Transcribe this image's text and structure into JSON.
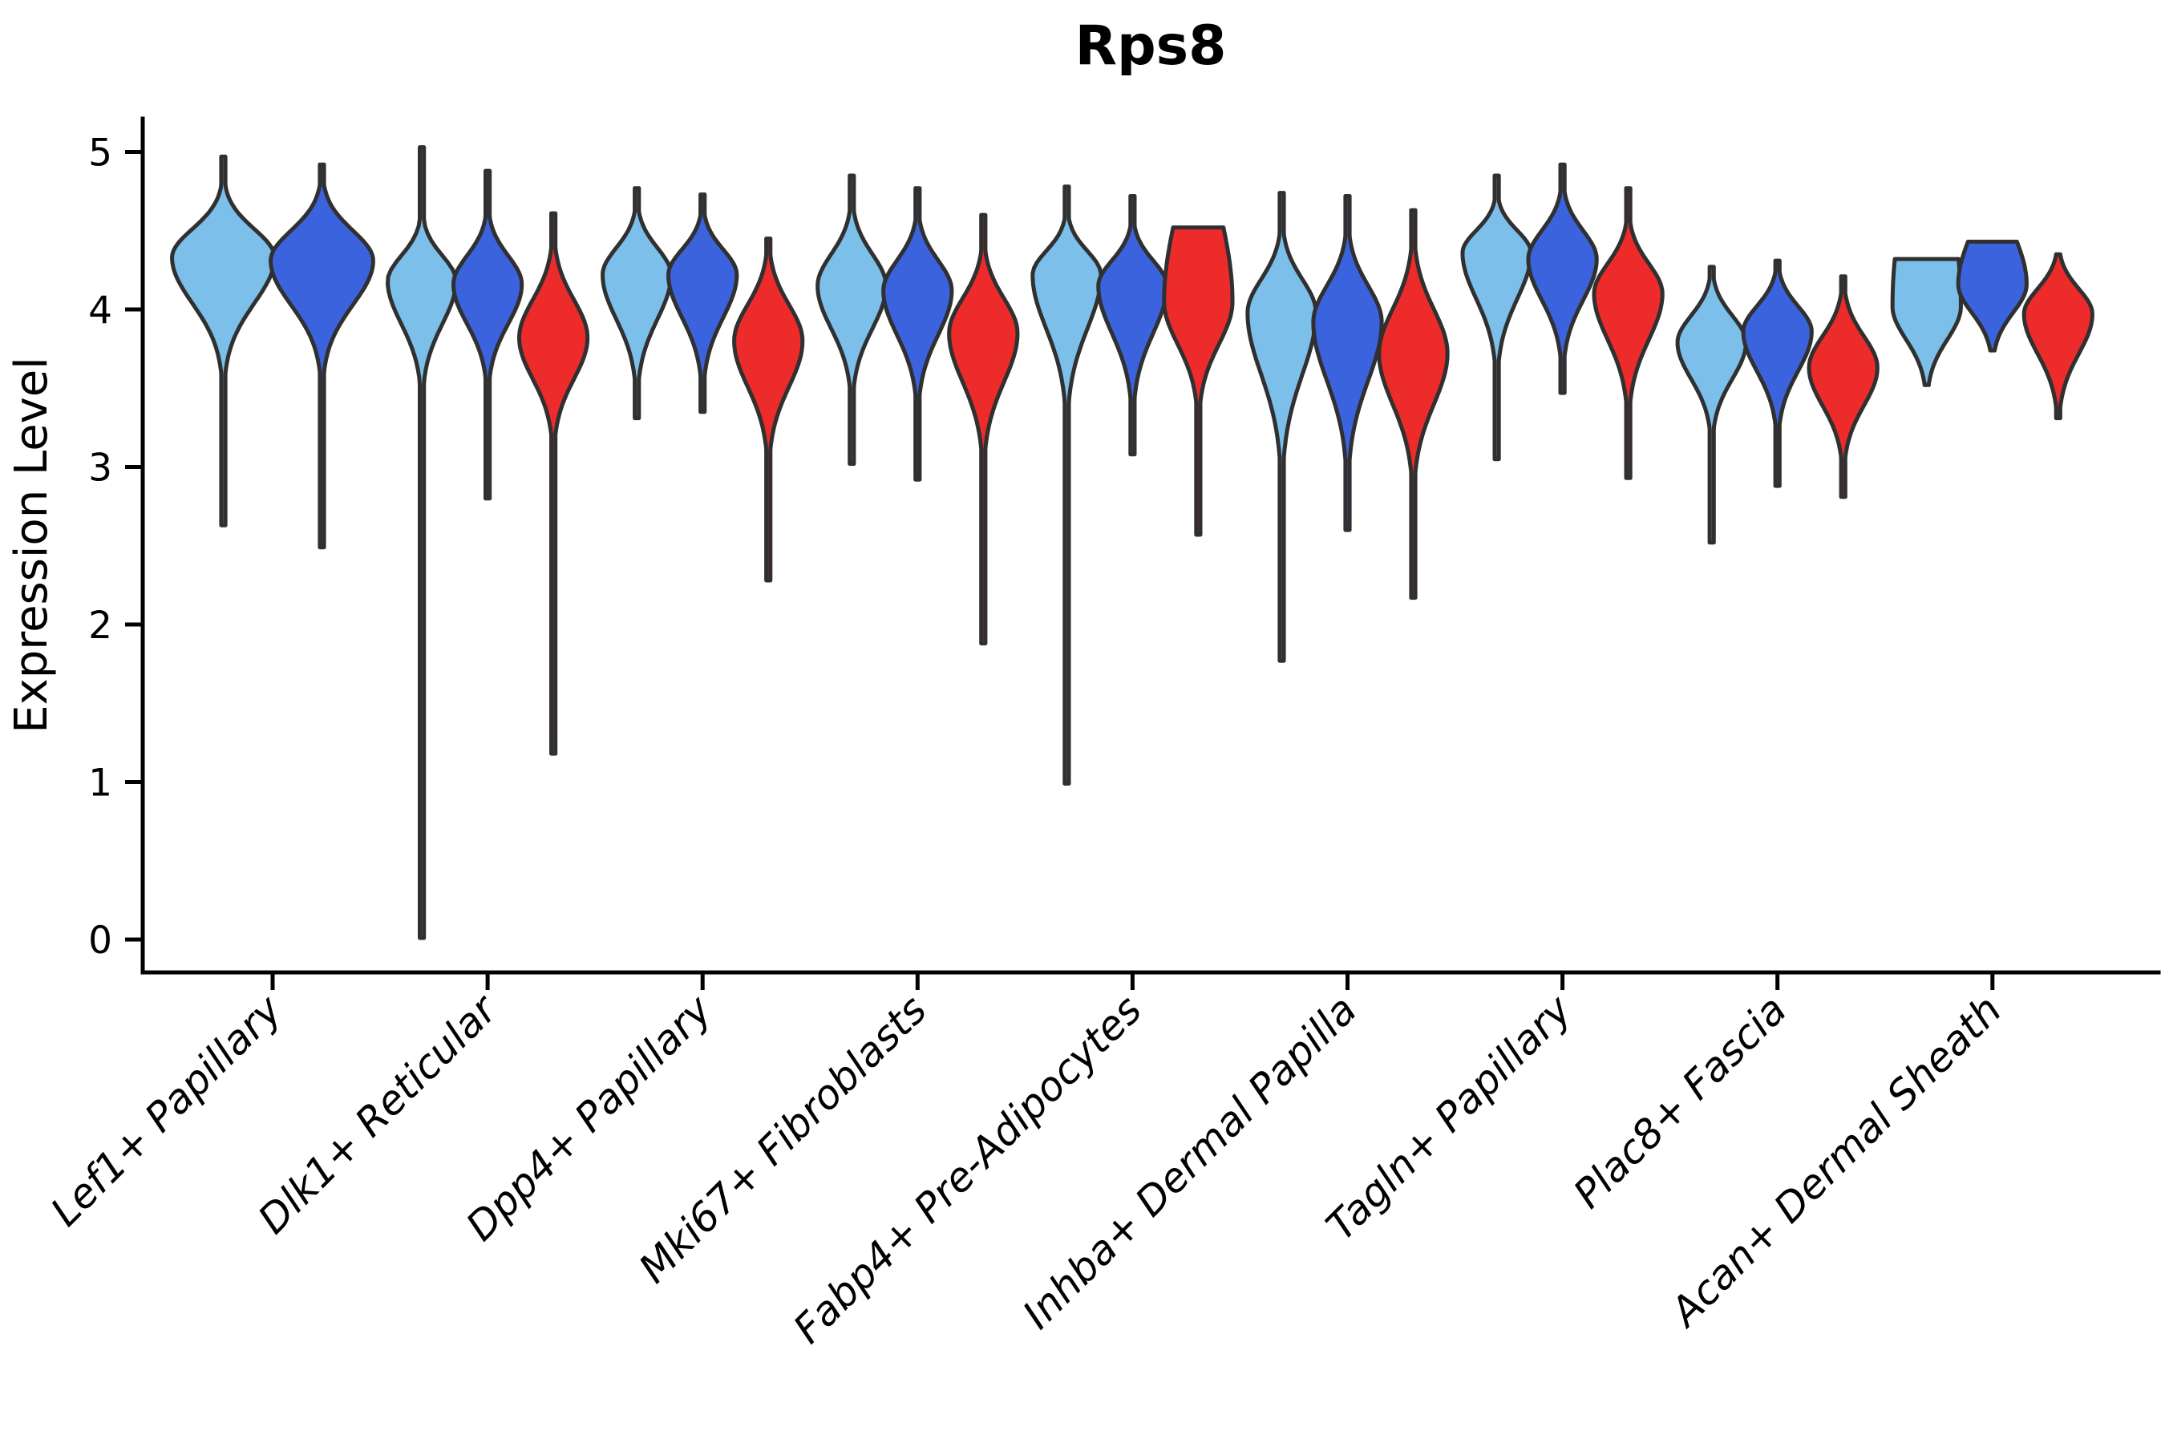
{
  "title": "Rps8",
  "y_axis": {
    "label": "Expression Level",
    "tick_labels": [
      "0",
      "1",
      "2",
      "3",
      "4",
      "5"
    ]
  },
  "colors": {
    "light_blue": "#7CBFEA",
    "dark_blue": "#3B63DD",
    "red": "#ED2B2B",
    "outline": "#303030",
    "axis": "#000000"
  },
  "chart_data": {
    "type": "violin",
    "title": "Rps8",
    "xlabel": "",
    "ylabel": "Expression Level",
    "ylim": [
      0,
      5
    ],
    "yticks": [
      0,
      1,
      2,
      3,
      4,
      5
    ],
    "grid": false,
    "legend": "none",
    "series_colors": {
      "light_blue": "#7CBFEA",
      "dark_blue": "#3B63DD",
      "red": "#ED2B2B"
    },
    "groups": [
      {
        "label": "Lef1+ Papillary",
        "violins": [
          {
            "color": "light_blue",
            "max": 4.97,
            "mode": 4.33,
            "min": 2.63,
            "s_up": 0.18,
            "s_dn": 0.29,
            "flat_top": false
          },
          {
            "color": "dark_blue",
            "max": 4.92,
            "mode": 4.31,
            "min": 2.49,
            "s_up": 0.19,
            "s_dn": 0.28,
            "flat_top": false
          }
        ]
      },
      {
        "label": "Dlk1+ Reticular",
        "violins": [
          {
            "color": "light_blue",
            "max": 5.03,
            "mode": 4.18,
            "min": 0.01,
            "s_up": 0.16,
            "s_dn": 0.27,
            "flat_top": false
          },
          {
            "color": "dark_blue",
            "max": 4.88,
            "mode": 4.16,
            "min": 2.8,
            "s_up": 0.18,
            "s_dn": 0.25,
            "flat_top": false
          },
          {
            "color": "red",
            "max": 4.61,
            "mode": 3.82,
            "min": 1.18,
            "s_up": 0.24,
            "s_dn": 0.26,
            "flat_top": false
          }
        ]
      },
      {
        "label": "Dpp4+ Papillary",
        "violins": [
          {
            "color": "light_blue",
            "max": 4.77,
            "mode": 4.22,
            "min": 3.31,
            "s_up": 0.17,
            "s_dn": 0.28,
            "flat_top": false
          },
          {
            "color": "dark_blue",
            "max": 4.73,
            "mode": 4.22,
            "min": 3.35,
            "s_up": 0.16,
            "s_dn": 0.27,
            "flat_top": false
          },
          {
            "color": "red",
            "max": 4.45,
            "mode": 3.8,
            "min": 2.28,
            "s_up": 0.23,
            "s_dn": 0.29,
            "flat_top": false
          }
        ]
      },
      {
        "label": "Mki67+ Fibroblasts",
        "violins": [
          {
            "color": "light_blue",
            "max": 4.85,
            "mode": 4.15,
            "min": 3.02,
            "s_up": 0.2,
            "s_dn": 0.27,
            "flat_top": false
          },
          {
            "color": "dark_blue",
            "max": 4.77,
            "mode": 4.12,
            "min": 2.92,
            "s_up": 0.19,
            "s_dn": 0.28,
            "flat_top": false
          },
          {
            "color": "red",
            "max": 4.6,
            "mode": 3.85,
            "min": 1.88,
            "s_up": 0.22,
            "s_dn": 0.31,
            "flat_top": false
          }
        ]
      },
      {
        "label": "Fabp4+ Pre-Adipocytes",
        "violins": [
          {
            "color": "light_blue",
            "max": 4.78,
            "mode": 4.22,
            "min": 0.99,
            "s_up": 0.15,
            "s_dn": 0.34,
            "flat_top": false
          },
          {
            "color": "dark_blue",
            "max": 4.72,
            "mode": 4.15,
            "min": 3.08,
            "s_up": 0.16,
            "s_dn": 0.3,
            "flat_top": false
          },
          {
            "color": "red",
            "max": 4.52,
            "mode": 4.05,
            "min": 2.57,
            "s_up": 0.6,
            "s_dn": 0.27,
            "flat_top": true
          }
        ]
      },
      {
        "label": "Inhba+ Dermal Papilla",
        "violins": [
          {
            "color": "light_blue",
            "max": 4.74,
            "mode": 3.98,
            "min": 1.77,
            "s_up": 0.21,
            "s_dn": 0.39,
            "flat_top": false
          },
          {
            "color": "dark_blue",
            "max": 4.72,
            "mode": 3.92,
            "min": 2.6,
            "s_up": 0.23,
            "s_dn": 0.37,
            "flat_top": false
          },
          {
            "color": "red",
            "max": 4.63,
            "mode": 3.72,
            "min": 2.17,
            "s_up": 0.28,
            "s_dn": 0.32,
            "flat_top": false
          }
        ]
      },
      {
        "label": "Tagln+ Papillary",
        "violins": [
          {
            "color": "light_blue",
            "max": 4.85,
            "mode": 4.36,
            "min": 3.05,
            "s_up": 0.14,
            "s_dn": 0.29,
            "flat_top": false
          },
          {
            "color": "dark_blue",
            "max": 4.92,
            "mode": 4.32,
            "min": 3.47,
            "s_up": 0.18,
            "s_dn": 0.26,
            "flat_top": false
          },
          {
            "color": "red",
            "max": 4.77,
            "mode": 4.1,
            "min": 2.93,
            "s_up": 0.19,
            "s_dn": 0.29,
            "flat_top": false
          }
        ]
      },
      {
        "label": "Plac8+ Fascia",
        "violins": [
          {
            "color": "light_blue",
            "max": 4.27,
            "mode": 3.79,
            "min": 2.52,
            "s_up": 0.17,
            "s_dn": 0.23,
            "flat_top": false
          },
          {
            "color": "dark_blue",
            "max": 4.31,
            "mode": 3.86,
            "min": 2.88,
            "s_up": 0.16,
            "s_dn": 0.25,
            "flat_top": false
          },
          {
            "color": "red",
            "max": 4.21,
            "mode": 3.63,
            "min": 2.81,
            "s_up": 0.2,
            "s_dn": 0.24,
            "flat_top": false
          }
        ]
      },
      {
        "label": "Acan+ Dermal Sheath",
        "violins": [
          {
            "color": "light_blue",
            "max": 4.32,
            "mode": 4.02,
            "min": 3.52,
            "s_up": 0.8,
            "s_dn": 0.21,
            "flat_top": true
          },
          {
            "color": "dark_blue",
            "max": 4.43,
            "mode": 4.16,
            "min": 3.74,
            "s_up": 0.33,
            "s_dn": 0.18,
            "flat_top": false
          },
          {
            "color": "red",
            "max": 4.35,
            "mode": 3.97,
            "min": 3.31,
            "s_up": 0.16,
            "s_dn": 0.25,
            "flat_top": false
          }
        ]
      }
    ]
  }
}
